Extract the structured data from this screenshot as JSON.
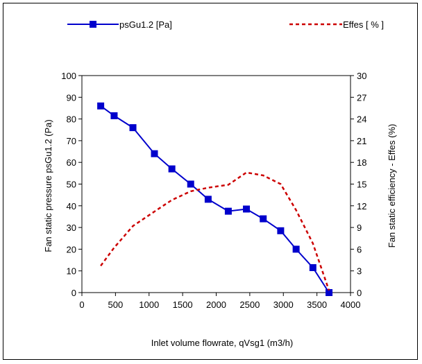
{
  "chart_data": {
    "type": "line",
    "title": "",
    "xlabel": "Inlet volume flowrate, qVsg1 (m3/h)",
    "ylabel_left": "Fan static pressure psGu1.2 (Pa)",
    "ylabel_right": "Fan static efficiency - Effes (%)",
    "xlim": [
      0,
      4000
    ],
    "ylim_left": [
      0,
      100
    ],
    "ylim_right": [
      0,
      30
    ],
    "x_ticks": [
      "0",
      "500",
      "1000",
      "1500",
      "2000",
      "2500",
      "3000",
      "3500",
      "4000"
    ],
    "y_left_ticks": [
      "0",
      "10",
      "20",
      "30",
      "40",
      "50",
      "60",
      "70",
      "80",
      "90",
      "100"
    ],
    "y_right_ticks": [
      "0",
      "3",
      "6",
      "9",
      "12",
      "15",
      "18",
      "21",
      "24",
      "27",
      "30"
    ],
    "grid": false,
    "legend_position": "top",
    "series": [
      {
        "name": "psGu1.2 [Pa]",
        "axis": "left",
        "color": "#0000cc",
        "style": "solid",
        "marker": "square",
        "x": [
          280,
          480,
          760,
          1080,
          1340,
          1620,
          1880,
          2180,
          2450,
          2700,
          2960,
          3190,
          3440,
          3680
        ],
        "y": [
          86,
          81.5,
          76,
          64,
          57,
          50,
          43,
          37.5,
          38.5,
          34,
          28.5,
          20,
          11.5,
          0
        ]
      },
      {
        "name": "Effes [ % ]",
        "axis": "right",
        "color": "#cc0000",
        "style": "dashed",
        "marker": "none",
        "x": [
          280,
          480,
          760,
          1080,
          1340,
          1620,
          1880,
          2180,
          2450,
          2700,
          2960,
          3190,
          3440,
          3680
        ],
        "y": [
          3.7,
          6.2,
          9.2,
          11.2,
          12.8,
          14.0,
          14.5,
          14.9,
          16.6,
          16.2,
          15.0,
          11.4,
          6.8,
          0.3
        ]
      }
    ]
  }
}
